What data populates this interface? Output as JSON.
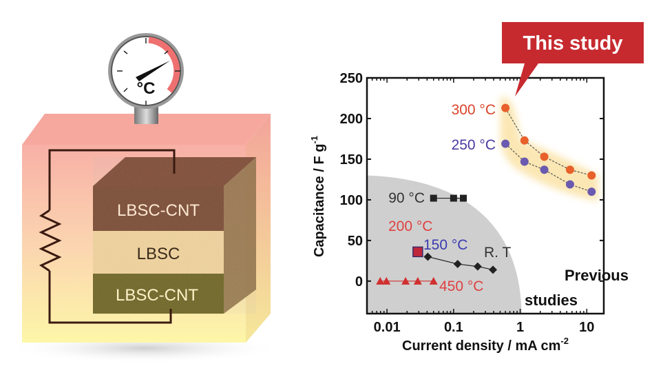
{
  "diagram": {
    "gauge_unit": "°C",
    "layers": [
      "LBSC-CNT",
      "LBSC",
      "LBSC-CNT"
    ],
    "colors": {
      "box_top": "#f8b4a8",
      "box_bottom": "#fdf3a8",
      "layer_cnt_top": "#7a4a32",
      "layer_lbsc": "#f4d49a",
      "layer_cnt_bottom": "#6e6420",
      "wire": "#3a1a10"
    }
  },
  "callout": {
    "text": "This study",
    "color": "#c62a2f"
  },
  "chart_data": {
    "type": "scatter",
    "xlabel": "Current density / mA cm",
    "xlabel_sup": "-2",
    "ylabel": "Capacitance / F g",
    "ylabel_sup": "-1",
    "xscale": "log",
    "xlim": [
      0.005,
      18
    ],
    "ylim": [
      -40,
      250
    ],
    "xticks": [
      0.01,
      0.1,
      1,
      10
    ],
    "xtick_labels": [
      "0.01",
      "0.1",
      "1",
      "10"
    ],
    "yticks": [
      0,
      50,
      100,
      150,
      200,
      250
    ],
    "ytick_labels": [
      "0",
      "50",
      "100",
      "150",
      "200",
      "250"
    ],
    "grid": false,
    "region_labels": {
      "previous": [
        "Previous",
        "studies"
      ]
    },
    "series": [
      {
        "name": "300 °C",
        "marker": "circle",
        "color": "#e8602a",
        "x": [
          0.6,
          1.16,
          2.3,
          5.6,
          11.8
        ],
        "y": [
          213,
          173,
          153,
          137,
          130
        ]
      },
      {
        "name": "250 °C",
        "marker": "circle",
        "color": "#6a5ab0",
        "x": [
          0.6,
          1.16,
          2.3,
          5.6,
          11.8
        ],
        "y": [
          169,
          147,
          137,
          119,
          110
        ]
      },
      {
        "name": "90 °C",
        "marker": "square",
        "color": "#222222",
        "x": [
          0.05,
          0.1,
          0.14
        ],
        "y": [
          102,
          102,
          102
        ]
      },
      {
        "name": "200 °C",
        "marker": "square",
        "color": "#c0263a",
        "x": [
          0.029
        ],
        "y": [
          36
        ]
      },
      {
        "name": "R. T",
        "marker": "diamond",
        "color": "#222222",
        "x": [
          0.041,
          0.115,
          0.23,
          0.39
        ],
        "y": [
          30,
          21,
          18,
          14
        ]
      },
      {
        "name": "450 °C",
        "marker": "triangle",
        "color": "#d03030",
        "x": [
          0.0079,
          0.0098,
          0.019,
          0.029,
          0.05
        ],
        "y": [
          0,
          0,
          0,
          0,
          0
        ]
      }
    ],
    "annotations": [
      {
        "text": "300 °C",
        "color": "#d9442a"
      },
      {
        "text": "250 °C",
        "color": "#4a3aa0"
      },
      {
        "text": "90 °C",
        "color": "#333333"
      },
      {
        "text": "200 °C",
        "color": "#e04040"
      },
      {
        "text": "150 °C",
        "color": "#3a3ab0"
      },
      {
        "text": "R. T",
        "color": "#333333"
      },
      {
        "text": "450 °C",
        "color": "#e04040"
      }
    ]
  }
}
